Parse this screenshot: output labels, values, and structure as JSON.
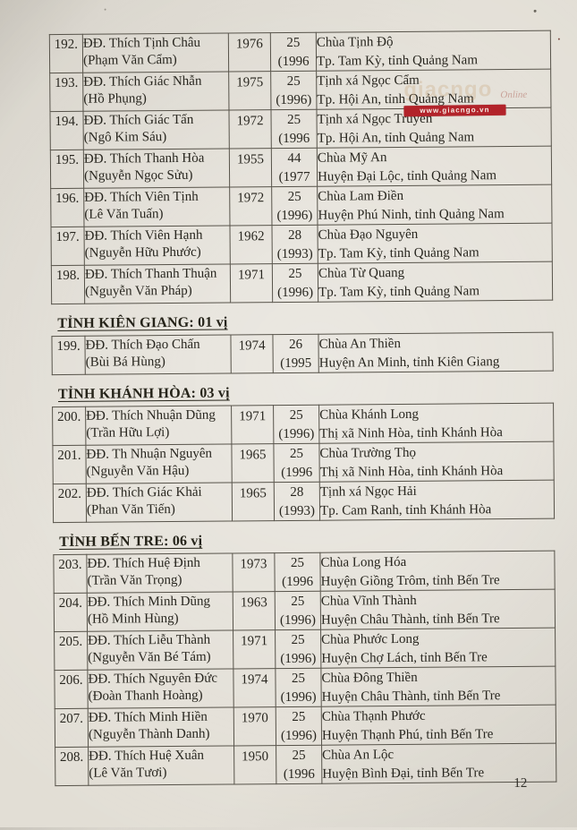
{
  "page": {
    "number": "12",
    "watermark": {
      "bar_text": "www.giacngo.vn",
      "ghost_text": "giacngo",
      "ghost_script": "Online",
      "bar_color": "#b2232a"
    }
  },
  "sections": [
    {
      "heading": null,
      "rows": [
        {
          "no": "192.",
          "name": "ĐĐ. Thích Tịnh Châu",
          "lay_name": "(Phạm Văn Cẩm)",
          "birth_year": "1976",
          "age": "25",
          "ord_year": "(1996",
          "temple": "Chùa Tịnh Độ",
          "location": "Tp. Tam Kỳ, tỉnh Quảng Nam"
        },
        {
          "no": "193.",
          "name": "ĐĐ. Thích Giác Nhẫn",
          "lay_name": "(Hồ Phụng)",
          "birth_year": "1975",
          "age": "25",
          "ord_year": "(1996)",
          "temple": "Tịnh xá Ngọc Cẩm",
          "location": "Tp. Hội An, tỉnh Quảng Nam"
        },
        {
          "no": "194.",
          "name": "ĐĐ. Thích Giác Tấn",
          "lay_name": "(Ngô Kim Sáu)",
          "birth_year": "1972",
          "age": "25",
          "ord_year": "(1996",
          "temple": "Tịnh xá Ngọc Truyền",
          "location": "Tp. Hội An, tỉnh Quảng Nam"
        },
        {
          "no": "195.",
          "name": "ĐĐ. Thích Thanh Hòa",
          "lay_name": "(Nguyễn Ngọc Sửu)",
          "birth_year": "1955",
          "age": "44",
          "ord_year": "(1977",
          "temple": "Chùa Mỹ An",
          "location": "Huyện Đại Lộc, tỉnh Quảng Nam"
        },
        {
          "no": "196.",
          "name": "ĐĐ. Thích Viên Tịnh",
          "lay_name": "(Lê Văn Tuấn)",
          "birth_year": "1972",
          "age": "25",
          "ord_year": "(1996)",
          "temple": "Chùa Lam Điền",
          "location": "Huyện Phú Ninh, tỉnh Quảng Nam"
        },
        {
          "no": "197.",
          "name": "ĐĐ. Thích Viên Hạnh",
          "lay_name": "(Nguyễn Hữu Phước)",
          "birth_year": "1962",
          "age": "28",
          "ord_year": "(1993)",
          "temple": "Chùa Đạo Nguyên",
          "location": "Tp. Tam Kỳ, tỉnh Quảng Nam"
        },
        {
          "no": "198.",
          "name": "ĐĐ. Thích Thanh Thuận",
          "lay_name": "(Nguyễn Văn Pháp)",
          "birth_year": "1971",
          "age": "25",
          "ord_year": "(1996)",
          "temple": "Chùa Từ Quang",
          "location": "Tp. Tam Kỳ, tỉnh Quảng Nam"
        }
      ]
    },
    {
      "heading": "TỈNH KIÊN GIANG: 01 vị",
      "rows": [
        {
          "no": "199.",
          "name": "ĐĐ. Thích Đạo Chấn",
          "lay_name": "(Bùi Bá Hùng)",
          "birth_year": "1974",
          "age": "26",
          "ord_year": "(1995",
          "temple": "Chùa An Thiền",
          "location": "Huyện An Minh, tỉnh Kiên Giang"
        }
      ]
    },
    {
      "heading": "TỈNH KHÁNH HÒA: 03 vị",
      "rows": [
        {
          "no": "200.",
          "name": "ĐĐ. Thích Nhuận Dũng",
          "lay_name": "(Trần Hữu Lợi)",
          "birth_year": "1971",
          "age": "25",
          "ord_year": "(1996)",
          "temple": "Chùa Khánh Long",
          "location": "Thị xã Ninh Hòa, tỉnh Khánh Hòa"
        },
        {
          "no": "201.",
          "name": "ĐĐ. Th Nhuận Nguyên",
          "lay_name": "(Nguyễn Văn Hậu)",
          "birth_year": "1965",
          "age": "25",
          "ord_year": "(1996",
          "temple": "Chùa Trường Thọ",
          "location": "Thị xã Ninh Hòa, tỉnh Khánh Hòa"
        },
        {
          "no": "202.",
          "name": "ĐĐ. Thích Giác Khải",
          "lay_name": "(Phan Văn Tiến)",
          "birth_year": "1965",
          "age": "28",
          "ord_year": "(1993)",
          "temple": "Tịnh xá Ngọc Hải",
          "location": "Tp. Cam Ranh, tỉnh Khánh Hòa"
        }
      ]
    },
    {
      "heading": "TỈNH BẾN TRE: 06 vị",
      "rows": [
        {
          "no": "203.",
          "name": "ĐĐ. Thích Huệ Định",
          "lay_name": "(Trần Văn Trọng)",
          "birth_year": "1973",
          "age": "25",
          "ord_year": "(1996",
          "temple": "Chùa Long Hóa",
          "location": "Huyện Giồng Trôm, tỉnh Bến Tre"
        },
        {
          "no": "204.",
          "name": "ĐĐ. Thích Minh Dũng",
          "lay_name": "(Hồ Minh Hùng)",
          "birth_year": "1963",
          "age": "25",
          "ord_year": "(1996)",
          "temple": "Chùa Vĩnh Thành",
          "location": "Huyện Châu Thành, tỉnh Bến Tre"
        },
        {
          "no": "205.",
          "name": "ĐĐ. Thích Liễu Thành",
          "lay_name": "(Nguyễn Văn Bé Tám)",
          "birth_year": "1971",
          "age": "25",
          "ord_year": "(1996)",
          "temple": "Chùa Phước Long",
          "location": "Huyện Chợ Lách, tỉnh Bến Tre"
        },
        {
          "no": "206.",
          "name": "ĐĐ. Thích Nguyên Đức",
          "lay_name": "(Đoàn Thanh Hoàng)",
          "birth_year": "1974",
          "age": "25",
          "ord_year": "(1996)",
          "temple": "Chùa Đông Thiền",
          "location": "Huyện Châu Thành, tỉnh Bến Tre"
        },
        {
          "no": "207.",
          "name": "ĐĐ. Thích Minh Hiền",
          "lay_name": "(Nguyễn Thành Danh)",
          "birth_year": "1970",
          "age": "25",
          "ord_year": "(1996)",
          "temple": "Chùa Thạnh Phước",
          "location": "Huyện Thạnh Phú, tỉnh Bến Tre"
        },
        {
          "no": "208.",
          "name": "ĐĐ. Thích Huệ Xuân",
          "lay_name": "(Lê Văn Tươi)",
          "birth_year": "1950",
          "age": "25",
          "ord_year": "(1996",
          "temple": "Chùa An Lộc",
          "location": "Huyện Bình Đại, tỉnh Bến Tre"
        }
      ]
    }
  ]
}
